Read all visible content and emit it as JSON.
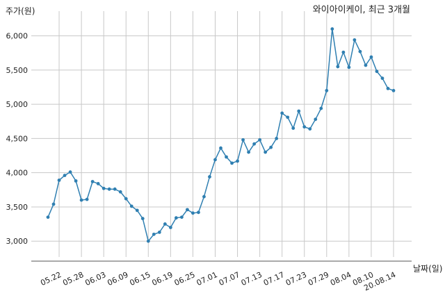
{
  "chart_data": {
    "type": "line",
    "title": "와이아이케이, 최근 3개월",
    "ylabel": "주가(원)",
    "xlabel": "날짜(일)",
    "ylim": [
      2850,
      6300
    ],
    "grid": true,
    "color": "#2f7fb1",
    "yticks": [
      3000,
      3500,
      4000,
      4500,
      5000,
      5500,
      6000
    ],
    "ytick_labels": [
      "3,000",
      "3,500",
      "4,000",
      "4,500",
      "5,000",
      "5,500",
      "6,000"
    ],
    "xtick_labels": [
      "05.22",
      "05.28",
      "06.03",
      "06.09",
      "06.15",
      "06.19",
      "06.25",
      "07.01",
      "07.07",
      "07.13",
      "07.17",
      "07.23",
      "07.29",
      "08.04",
      "08.10",
      "20.08.14"
    ],
    "xtick_index": [
      2,
      6,
      10,
      14,
      18,
      22,
      26,
      30,
      34,
      38,
      42,
      46,
      50,
      54,
      58,
      62
    ],
    "values": [
      3350,
      3540,
      3890,
      3960,
      4010,
      3880,
      3600,
      3610,
      3870,
      3840,
      3770,
      3760,
      3760,
      3720,
      3620,
      3510,
      3450,
      3330,
      3000,
      3100,
      3130,
      3250,
      3200,
      3340,
      3350,
      3460,
      3410,
      3420,
      3650,
      3940,
      4190,
      4360,
      4230,
      4140,
      4170,
      4480,
      4300,
      4420,
      4480,
      4300,
      4370,
      4500,
      4870,
      4810,
      4650,
      4900,
      4670,
      4640,
      4780,
      4940,
      5200,
      6100,
      5550,
      5760,
      5540,
      5940,
      5770,
      5570,
      5690,
      5480,
      5380,
      5230,
      5200
    ]
  }
}
